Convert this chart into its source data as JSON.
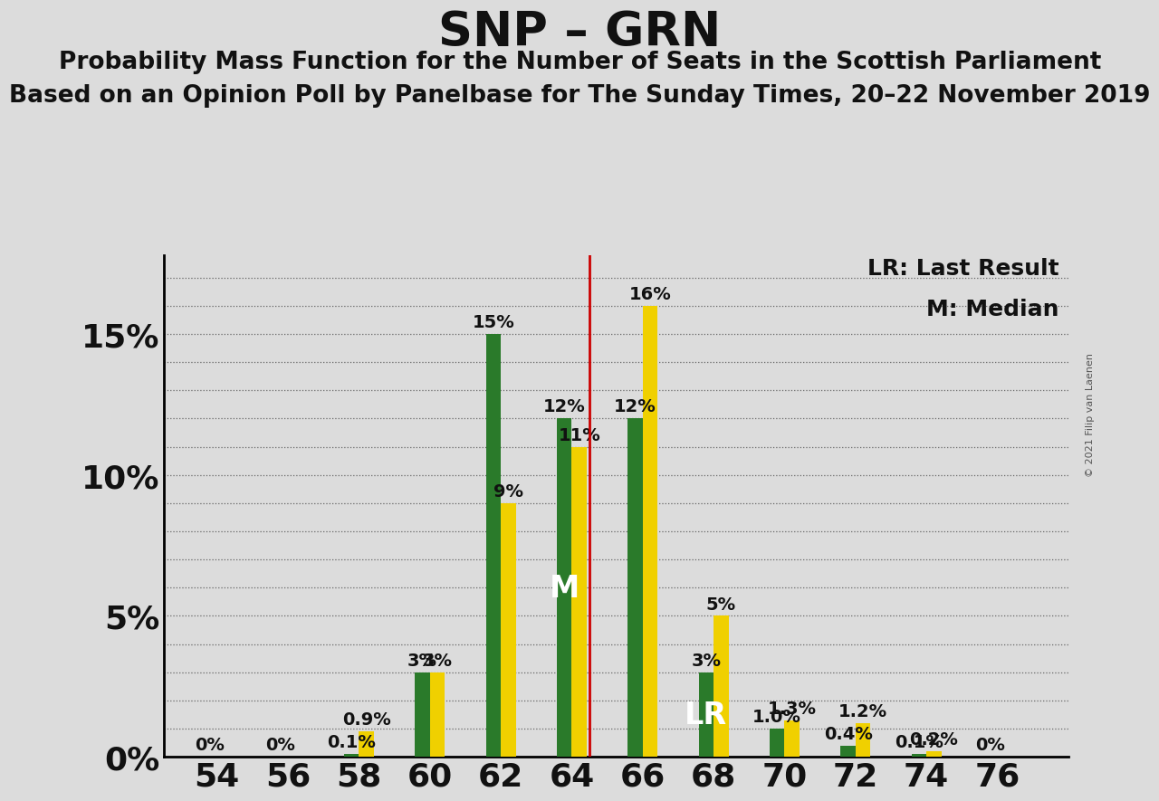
{
  "title": "SNP – GRN",
  "subtitle1": "Probability Mass Function for the Number of Seats in the Scottish Parliament",
  "subtitle2": "Based on an Opinion Poll by Panelbase for The Sunday Times, 20–22 November 2019",
  "copyright": "© 2021 Filip van Laenen",
  "legend_lr": "LR: Last Result",
  "legend_m": "M: Median",
  "median_line": 64.5,
  "lr_seat": 68,
  "background_color": "#dcdcdc",
  "bar_width": 0.42,
  "green_color": "#2a7a2a",
  "yellow_color": "#f0d000",
  "red_color": "#cc0000",
  "seats": [
    54,
    56,
    58,
    60,
    62,
    64,
    66,
    68,
    70,
    72,
    74,
    76
  ],
  "green_values": [
    0.0,
    0.0,
    0.1,
    3.0,
    15.0,
    12.0,
    12.0,
    3.0,
    1.0,
    0.4,
    0.1,
    0.0
  ],
  "yellow_values": [
    0.0,
    0.0,
    0.9,
    3.0,
    9.0,
    11.0,
    16.0,
    5.0,
    1.3,
    1.2,
    0.2,
    0.0
  ],
  "green_labels": [
    "0%",
    "0%",
    "0.1%",
    "3%",
    "15%",
    "12%",
    "12%",
    "3%",
    "1.0%",
    "0.4%",
    "0.1%",
    "0%"
  ],
  "yellow_labels": [
    "0%",
    "0%",
    "0.9%",
    "3%",
    "9%",
    "11%",
    "16%",
    "5%",
    "1.3%",
    "1.2%",
    "0.2%",
    "0%"
  ],
  "show_green_label": [
    true,
    true,
    true,
    true,
    true,
    true,
    true,
    true,
    true,
    true,
    true,
    true
  ],
  "show_yellow_label": [
    false,
    false,
    true,
    true,
    true,
    true,
    true,
    true,
    true,
    true,
    true,
    false
  ],
  "xlim": [
    52.5,
    78.0
  ],
  "ylim": [
    0,
    17.8
  ],
  "yticks": [
    0,
    5,
    10,
    15
  ],
  "xticks": [
    54,
    56,
    58,
    60,
    62,
    64,
    66,
    68,
    70,
    72,
    74,
    76
  ],
  "tick_fontsize": 26,
  "title_fontsize": 38,
  "subtitle1_fontsize": 19,
  "subtitle2_fontsize": 19,
  "bar_label_fontsize": 14,
  "annotation_fontsize": 24,
  "legend_fontsize": 18
}
